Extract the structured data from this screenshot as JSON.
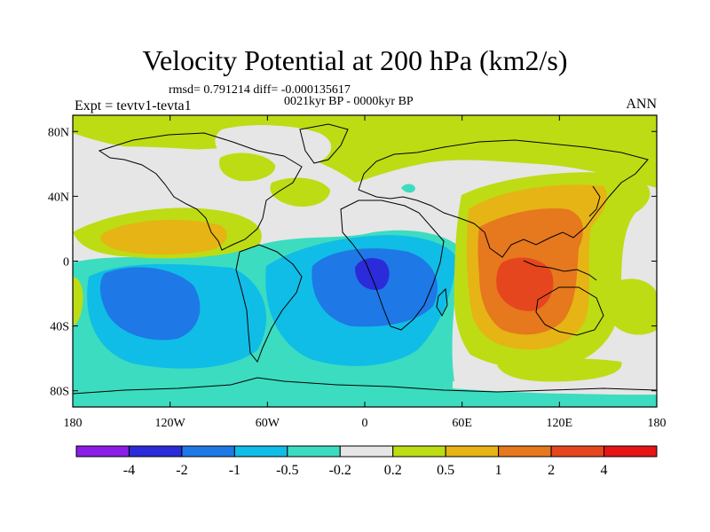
{
  "title": "Velocity Potential at 200 hPa (km2/s)",
  "stats_line": "rmsd= 0.791214 diff= -0.000135617",
  "period_line": "0021kyr BP - 0000kyr BP",
  "experiment_label": "Expt = tevtv1-tevta1",
  "season_label": "ANN",
  "map": {
    "projection": "cylindrical-equidistant",
    "lon_range": [
      -180,
      180
    ],
    "lat_range": [
      -90,
      90
    ],
    "lon_ticks": [
      {
        "value": -180,
        "label": "180"
      },
      {
        "value": -120,
        "label": "120W"
      },
      {
        "value": -60,
        "label": "60W"
      },
      {
        "value": 0,
        "label": "0"
      },
      {
        "value": 60,
        "label": "60E"
      },
      {
        "value": 120,
        "label": "120E"
      },
      {
        "value": 180,
        "label": "180"
      }
    ],
    "lat_ticks": [
      {
        "value": 80,
        "label": "80N"
      },
      {
        "value": 40,
        "label": "40N"
      },
      {
        "value": 0,
        "label": "0"
      },
      {
        "value": -40,
        "label": "40S"
      },
      {
        "value": -80,
        "label": "80S"
      }
    ]
  },
  "colorbar": {
    "colors": [
      "#8a1ee6",
      "#2b2bd9",
      "#1e78e6",
      "#10bde6",
      "#3cdcc0",
      "#e6e6e6",
      "#bddc14",
      "#e6b414",
      "#e6781e",
      "#e6461e",
      "#e61414"
    ],
    "labels": [
      "-4",
      "-2",
      "-1",
      "-0.5",
      "-0.2",
      "0.2",
      "0.5",
      "1",
      "2",
      "4"
    ]
  },
  "field_colors": {
    "neutral": "#e6e6e6",
    "neg_02": "#3cdcc0",
    "neg_05": "#10bde6",
    "neg_1": "#1e78e6",
    "neg_2": "#2b2bd9",
    "pos_02": "#bddc14",
    "pos_05": "#e6b414",
    "pos_1": "#e6781e",
    "pos_2": "#e6461e"
  }
}
